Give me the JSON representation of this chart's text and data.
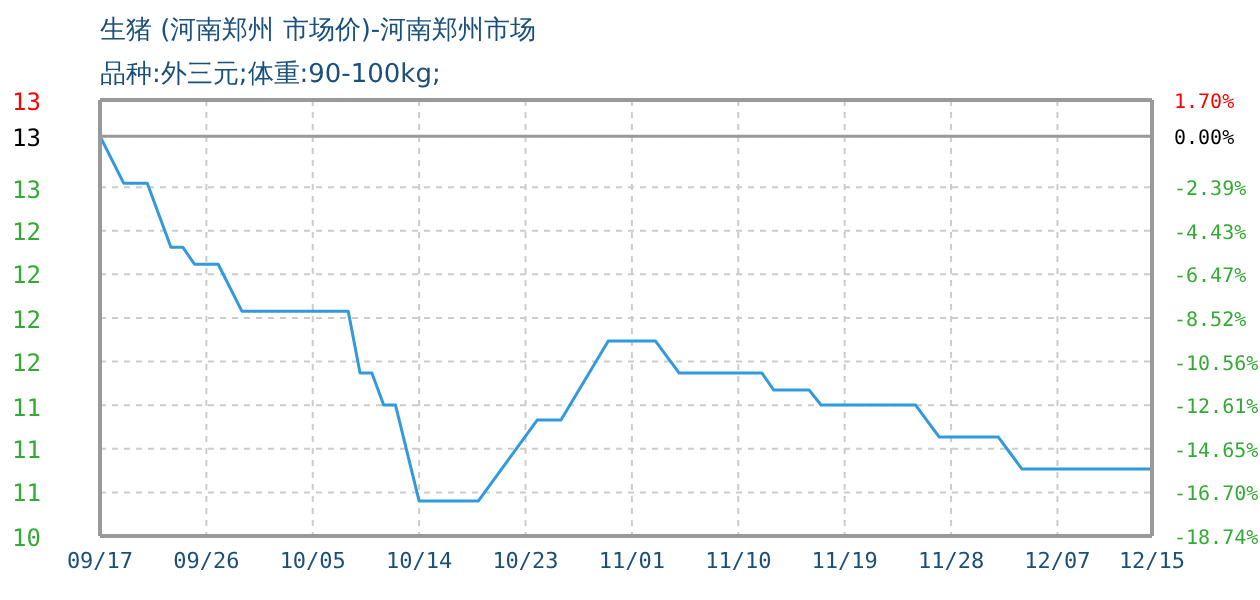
{
  "chart_data": {
    "type": "line",
    "title": "生猪 (河南郑州 市场价)-河南郑州市场",
    "subtitle": "品种:外三元;体重:90-100kg;",
    "x": [
      "--09-17",
      "--09-19",
      "--09-21",
      "--09-23",
      "--09-24",
      "--09-25",
      "--09-27",
      "--09-29",
      "--10-08",
      "--10-09",
      "--10-10",
      "--10-11",
      "--10-12",
      "--10-14",
      "--10-19",
      "--10-24",
      "--10-26",
      "--10-30",
      "--11-03",
      "--11-05",
      "--11-12",
      "--11-13",
      "--11-16",
      "--11-17",
      "--11-25",
      "--11-27",
      "--12-02",
      "--12-04",
      "--12-15"
    ],
    "series": [
      {
        "color": "#3399dd",
        "axis": "y2",
        "values": [
          0,
          -2.2,
          -2.2,
          -5.2,
          -5.2,
          -6,
          -6,
          -8.2,
          -8.2,
          -11.1,
          -11.1,
          -12.6,
          -12.6,
          -17.1,
          -17.1,
          -13.3,
          -13.3,
          -9.6,
          -9.6,
          -11.1,
          -11.1,
          -11.9,
          -11.9,
          -12.6,
          -12.6,
          -14.1,
          -14.1,
          -15.6,
          -15.6
        ]
      }
    ],
    "xlim": [
      "--09-17",
      "--12-15"
    ],
    "xticks": [
      {
        "value": "--09-17",
        "label": "09/17"
      },
      {
        "value": "--09-26",
        "label": "09/26"
      },
      {
        "value": "--10-05",
        "label": "10/05"
      },
      {
        "value": "--10-14",
        "label": "10/14"
      },
      {
        "value": "--10-23",
        "label": "10/23"
      },
      {
        "value": "--11-01",
        "label": "11/01"
      },
      {
        "value": "--11-10",
        "label": "11/10"
      },
      {
        "value": "--11-19",
        "label": "11/19"
      },
      {
        "value": "--11-28",
        "label": "11/28"
      },
      {
        "value": "--12-07",
        "label": "12/07"
      },
      {
        "value": "--12-15",
        "label": "12/15"
      }
    ],
    "ylim": [
      10.48,
      13.12
    ],
    "yticks": [
      {
        "value": 13.12,
        "label": "13"
      },
      {
        "value": 12.9,
        "label": "13"
      },
      {
        "value": 12.59,
        "label": "13"
      },
      {
        "value": 12.33,
        "label": "12"
      },
      {
        "value": 12.07,
        "label": "12"
      },
      {
        "value": 11.8,
        "label": "12"
      },
      {
        "value": 11.54,
        "label": "12"
      },
      {
        "value": 11.27,
        "label": "11"
      },
      {
        "value": 11.01,
        "label": "11"
      },
      {
        "value": 10.75,
        "label": "11"
      },
      {
        "value": 10.48,
        "label": "10"
      }
    ],
    "y2lim": [
      -18.74,
      1.7
    ],
    "y2ticks": [
      {
        "value": 1.7,
        "label": "1.70%"
      },
      {
        "value": 0,
        "label": "0.00%"
      },
      {
        "value": -2.39,
        "label": "-2.39%"
      },
      {
        "value": -4.43,
        "label": "-4.43%"
      },
      {
        "value": -6.47,
        "label": "-6.47%"
      },
      {
        "value": -8.52,
        "label": "-8.52%"
      },
      {
        "value": -10.56,
        "label": "-10.56%"
      },
      {
        "value": -12.61,
        "label": "-12.61%"
      },
      {
        "value": -14.65,
        "label": "-14.65%"
      },
      {
        "value": -16.7,
        "label": "-16.70%"
      },
      {
        "value": -18.74,
        "label": "-18.74%"
      }
    ],
    "ref_lines": [
      {
        "axis": "y2",
        "value": 0,
        "color": "#999999"
      }
    ],
    "grid": true,
    "marker": "none",
    "line_style": "solid"
  }
}
